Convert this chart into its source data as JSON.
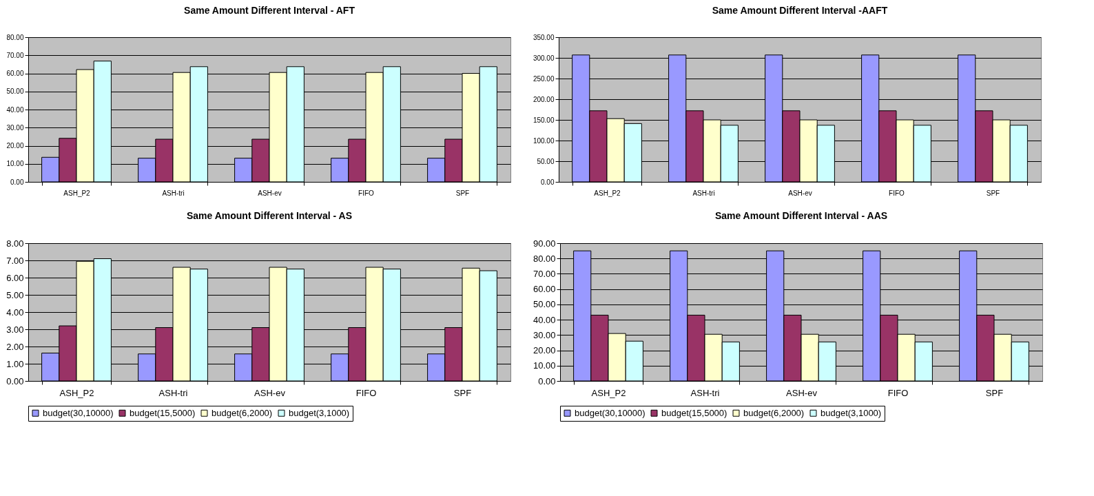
{
  "chart_data": [
    {
      "type": "bar",
      "title": "Same Amount Different Interval - AFT",
      "categories": [
        "ASH_P2",
        "ASH-tri",
        "ASH-ev",
        "FIFO",
        "SPF"
      ],
      "series": [
        {
          "color": "#9999ff",
          "values": [
            13.6,
            13.1,
            13.1,
            13.1,
            13.1
          ]
        },
        {
          "color": "#993366",
          "values": [
            24.1,
            23.6,
            23.6,
            23.6,
            23.6
          ]
        },
        {
          "color": "#ffffcc",
          "values": [
            62.1,
            60.5,
            60.5,
            60.5,
            60.0
          ]
        },
        {
          "color": "#ccffff",
          "values": [
            66.8,
            63.7,
            63.7,
            63.7,
            63.7
          ]
        }
      ],
      "ylim": [
        0,
        80
      ],
      "yticks": [
        {
          "value": 0,
          "label": "0.00"
        },
        {
          "value": 10,
          "label": "10.00"
        },
        {
          "value": 20,
          "label": "20.00"
        },
        {
          "value": 30,
          "label": "30.00"
        },
        {
          "value": 40,
          "label": "40.00"
        },
        {
          "value": 50,
          "label": "50.00"
        },
        {
          "value": 60,
          "label": "60.00"
        },
        {
          "value": 70,
          "label": "70.00"
        },
        {
          "value": 80,
          "label": "80.00"
        }
      ],
      "grid": "y",
      "legend": false
    },
    {
      "type": "bar",
      "title": "Same Amount Different Interval -AAFT",
      "categories": [
        "ASH_P2",
        "ASH-tri",
        "ASH-ev",
        "FIFO",
        "SPF"
      ],
      "series": [
        {
          "color": "#9999ff",
          "values": [
            307,
            307,
            307,
            307,
            307
          ]
        },
        {
          "color": "#993366",
          "values": [
            172,
            172,
            172,
            172,
            172
          ]
        },
        {
          "color": "#ffffcc",
          "values": [
            153,
            150,
            150,
            150,
            150
          ]
        },
        {
          "color": "#ccffff",
          "values": [
            141,
            137,
            137,
            137,
            137
          ]
        }
      ],
      "ylim": [
        0,
        350
      ],
      "yticks": [
        {
          "value": 0,
          "label": "0.00"
        },
        {
          "value": 50,
          "label": "50.00"
        },
        {
          "value": 100,
          "label": "100.00"
        },
        {
          "value": 150,
          "label": "150.00"
        },
        {
          "value": 200,
          "label": "200.00"
        },
        {
          "value": 250,
          "label": "250.00"
        },
        {
          "value": 300,
          "label": "300.00"
        },
        {
          "value": 350,
          "label": "350.00"
        }
      ],
      "grid": "y",
      "legend": false
    },
    {
      "type": "bar",
      "title": "Same Amount Different Interval - AS",
      "categories": [
        "ASH_P2",
        "ASH-tri",
        "ASH-ev",
        "FIFO",
        "SPF"
      ],
      "series": [
        {
          "name": "budget(30,10000)",
          "color": "#9999ff",
          "values": [
            1.62,
            1.57,
            1.57,
            1.57,
            1.57
          ]
        },
        {
          "name": "budget(15,5000)",
          "color": "#993366",
          "values": [
            3.2,
            3.1,
            3.1,
            3.1,
            3.1
          ]
        },
        {
          "name": "budget(6,2000)",
          "color": "#ffffcc",
          "values": [
            6.95,
            6.6,
            6.6,
            6.6,
            6.55
          ]
        },
        {
          "name": "budget(3,1000)",
          "color": "#ccffff",
          "values": [
            7.1,
            6.5,
            6.5,
            6.5,
            6.4
          ]
        }
      ],
      "ylim": [
        0,
        8
      ],
      "yticks": [
        {
          "value": 0,
          "label": "0.00"
        },
        {
          "value": 1,
          "label": "1.00"
        },
        {
          "value": 2,
          "label": "2.00"
        },
        {
          "value": 3,
          "label": "3.00"
        },
        {
          "value": 4,
          "label": "4.00"
        },
        {
          "value": 5,
          "label": "5.00"
        },
        {
          "value": 6,
          "label": "6.00"
        },
        {
          "value": 7,
          "label": "7.00"
        },
        {
          "value": 8,
          "label": "8.00"
        }
      ],
      "grid": "y",
      "legend": "bottom"
    },
    {
      "type": "bar",
      "title": "Same Amount Different Interval - AAS",
      "categories": [
        "ASH_P2",
        "ASH-tri",
        "ASH-ev",
        "FIFO",
        "SPF"
      ],
      "series": [
        {
          "name": "budget(30,10000)",
          "color": "#9999ff",
          "values": [
            85,
            85,
            85,
            85,
            85
          ]
        },
        {
          "name": "budget(15,5000)",
          "color": "#993366",
          "values": [
            43,
            43,
            43,
            43,
            43
          ]
        },
        {
          "name": "budget(6,2000)",
          "color": "#ffffcc",
          "values": [
            31,
            30.5,
            30.5,
            30.5,
            30.5
          ]
        },
        {
          "name": "budget(3,1000)",
          "color": "#ccffff",
          "values": [
            26,
            25.5,
            25.5,
            25.5,
            25.5
          ]
        }
      ],
      "ylim": [
        0,
        90
      ],
      "yticks": [
        {
          "value": 0,
          "label": "0.00"
        },
        {
          "value": 10,
          "label": "10.00"
        },
        {
          "value": 20,
          "label": "20.00"
        },
        {
          "value": 30,
          "label": "30.00"
        },
        {
          "value": 40,
          "label": "40.00"
        },
        {
          "value": 50,
          "label": "50.00"
        },
        {
          "value": 60,
          "label": "60.00"
        },
        {
          "value": 70,
          "label": "70.00"
        },
        {
          "value": 80,
          "label": "80.00"
        },
        {
          "value": 90,
          "label": "90.00"
        }
      ],
      "grid": "y",
      "legend": "bottom"
    }
  ]
}
